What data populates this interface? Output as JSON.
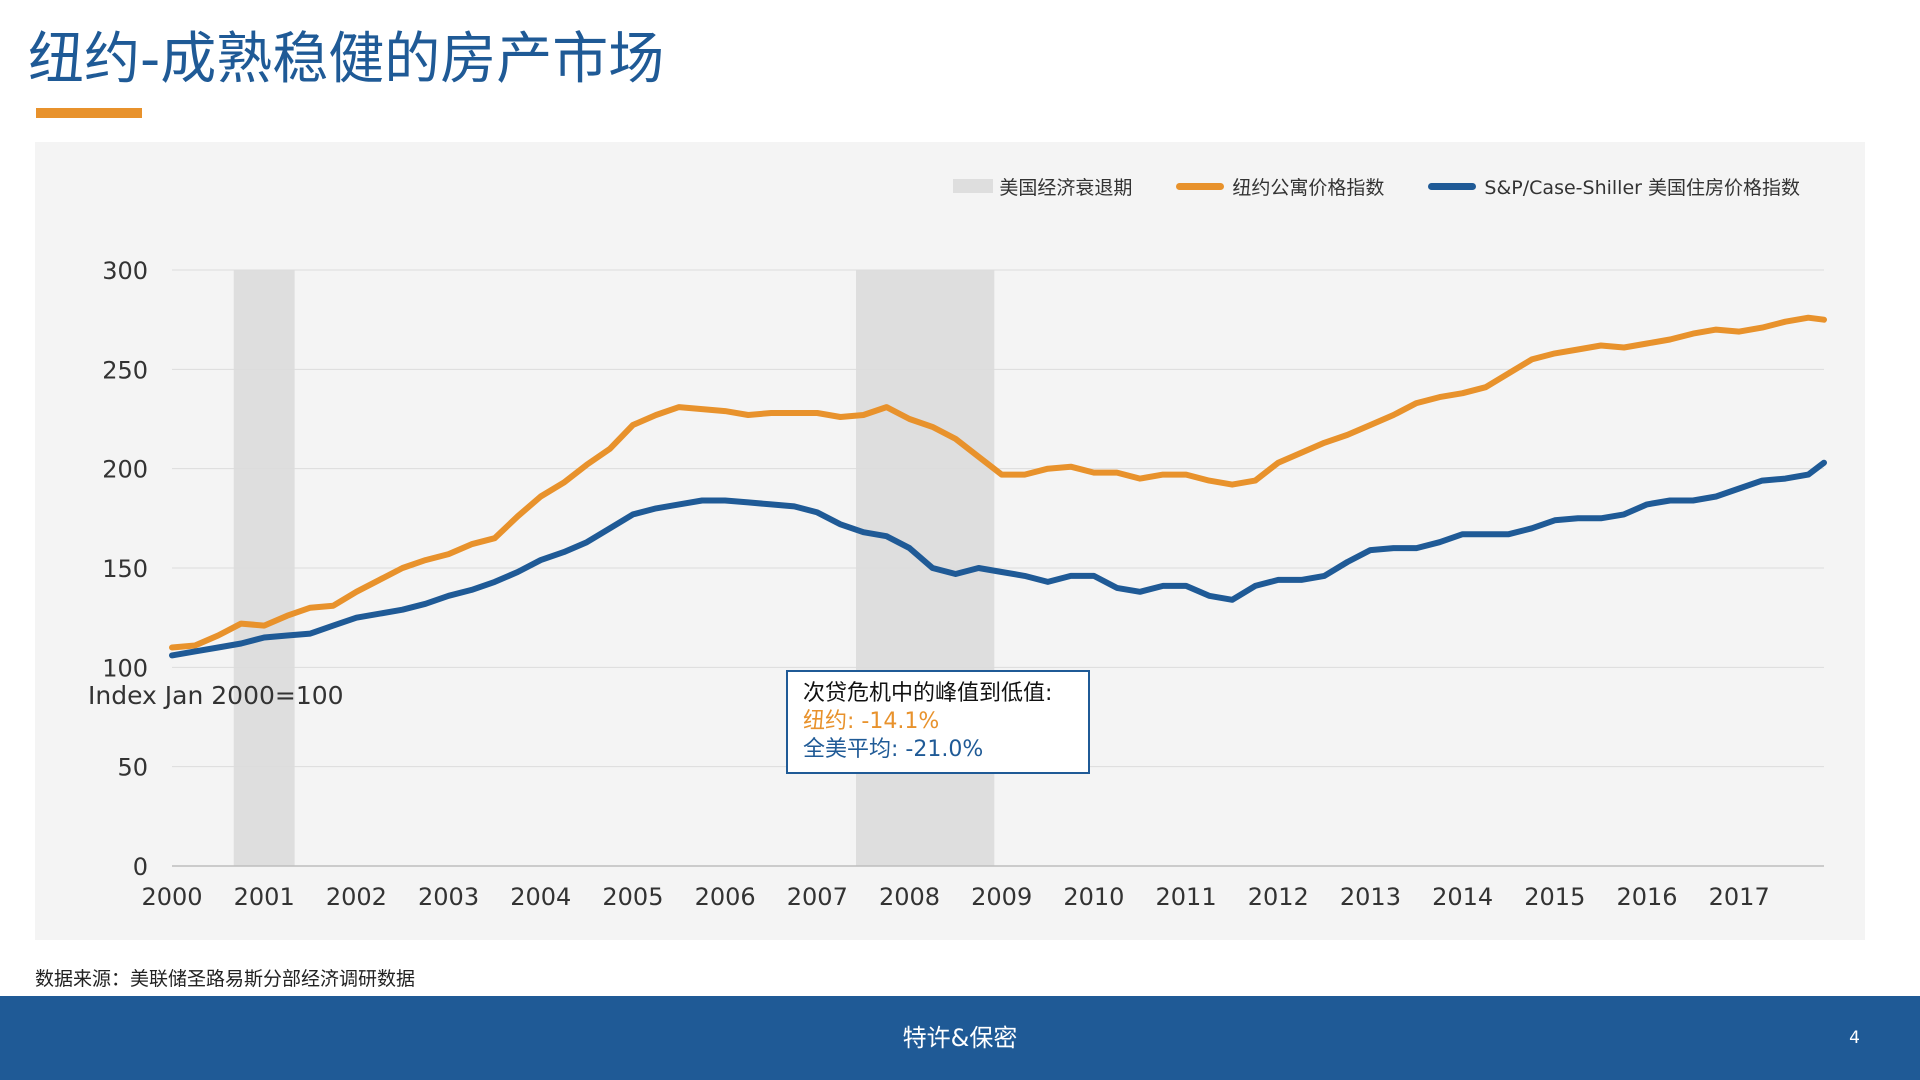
{
  "slide": {
    "title": "纽约-成熟稳健的房产市场",
    "source": "数据来源：美联储圣路易斯分部经济调研数据",
    "footer": "特许&保密",
    "page_number": "4"
  },
  "colors": {
    "title": "#1f5a96",
    "ny_line": "#e8922c",
    "us_line": "#1f5a96",
    "recession_band": "#dedede",
    "panel_bg": "#f4f4f4",
    "footer_bg": "#1f5a96"
  },
  "annotation": {
    "title": "次贷危机中的峰值到低值:",
    "ny": "纽约: -14.1%",
    "us": "全美平均: -21.0%"
  },
  "chart_data": {
    "type": "line",
    "title": "",
    "xlabel": "",
    "ylabel": "",
    "y_note": "Index Jan 2000=100",
    "xlim": [
      2000,
      2018
    ],
    "ylim": [
      0,
      300
    ],
    "yticks": [
      0,
      50,
      100,
      150,
      200,
      250,
      300
    ],
    "xticks": [
      "2000",
      "2001",
      "2002",
      "2003",
      "2004",
      "2005",
      "2006",
      "2007",
      "2008",
      "2009",
      "2010",
      "2011",
      "2012",
      "2013",
      "2014",
      "2015",
      "2016",
      "2017"
    ],
    "grid": "horizontal",
    "legend_position": "top-right",
    "recessions": {
      "name": "美国经济衰退期",
      "periods": [
        [
          2000.67,
          2001.33
        ],
        [
          2007.42,
          2008.92
        ]
      ]
    },
    "series": [
      {
        "name": "纽约公寓价格指数",
        "color": "#e8922c",
        "x": [
          2000.0,
          2000.25,
          2000.5,
          2000.75,
          2001.0,
          2001.25,
          2001.5,
          2001.75,
          2002.0,
          2002.25,
          2002.5,
          2002.75,
          2003.0,
          2003.25,
          2003.5,
          2003.75,
          2004.0,
          2004.25,
          2004.5,
          2004.75,
          2005.0,
          2005.25,
          2005.5,
          2005.75,
          2006.0,
          2006.25,
          2006.5,
          2006.75,
          2007.0,
          2007.25,
          2007.5,
          2007.75,
          2008.0,
          2008.25,
          2008.5,
          2008.75,
          2009.0,
          2009.25,
          2009.5,
          2009.75,
          2010.0,
          2010.25,
          2010.5,
          2010.75,
          2011.0,
          2011.25,
          2011.5,
          2011.75,
          2012.0,
          2012.25,
          2012.5,
          2012.75,
          2013.0,
          2013.25,
          2013.5,
          2013.75,
          2014.0,
          2014.25,
          2014.5,
          2014.75,
          2015.0,
          2015.25,
          2015.5,
          2015.75,
          2016.0,
          2016.25,
          2016.5,
          2016.75,
          2017.0,
          2017.25,
          2017.5,
          2017.75,
          2017.92
        ],
        "values": [
          110,
          111,
          116,
          122,
          121,
          126,
          130,
          131,
          138,
          144,
          150,
          154,
          157,
          162,
          165,
          176,
          186,
          193,
          202,
          210,
          222,
          227,
          231,
          230,
          229,
          227,
          228,
          228,
          228,
          226,
          227,
          231,
          225,
          221,
          215,
          206,
          197,
          197,
          200,
          201,
          198,
          198,
          195,
          197,
          197,
          194,
          192,
          194,
          203,
          208,
          213,
          217,
          222,
          227,
          233,
          236,
          238,
          241,
          248,
          255,
          258,
          260,
          262,
          261,
          263,
          265,
          268,
          270,
          269,
          271,
          274,
          276,
          275
        ]
      },
      {
        "name": "S&P/Case-Shiller 美国住房价格指数",
        "color": "#1f5a96",
        "x": [
          2000.0,
          2000.25,
          2000.5,
          2000.75,
          2001.0,
          2001.25,
          2001.5,
          2001.75,
          2002.0,
          2002.25,
          2002.5,
          2002.75,
          2003.0,
          2003.25,
          2003.5,
          2003.75,
          2004.0,
          2004.25,
          2004.5,
          2004.75,
          2005.0,
          2005.25,
          2005.5,
          2005.75,
          2006.0,
          2006.25,
          2006.5,
          2006.75,
          2007.0,
          2007.25,
          2007.5,
          2007.75,
          2008.0,
          2008.25,
          2008.5,
          2008.75,
          2009.0,
          2009.25,
          2009.5,
          2009.75,
          2010.0,
          2010.25,
          2010.5,
          2010.75,
          2011.0,
          2011.25,
          2011.5,
          2011.75,
          2012.0,
          2012.25,
          2012.5,
          2012.75,
          2013.0,
          2013.25,
          2013.5,
          2013.75,
          2014.0,
          2014.25,
          2014.5,
          2014.75,
          2015.0,
          2015.25,
          2015.5,
          2015.75,
          2016.0,
          2016.25,
          2016.5,
          2016.75,
          2017.0,
          2017.25,
          2017.5,
          2017.75,
          2017.92
        ],
        "values": [
          106,
          108,
          110,
          112,
          115,
          116,
          117,
          121,
          125,
          127,
          129,
          132,
          136,
          139,
          143,
          148,
          154,
          158,
          163,
          170,
          177,
          180,
          182,
          184,
          184,
          183,
          182,
          181,
          178,
          172,
          168,
          166,
          160,
          150,
          147,
          150,
          148,
          146,
          143,
          146,
          146,
          140,
          138,
          141,
          141,
          136,
          134,
          141,
          144,
          144,
          146,
          153,
          159,
          160,
          160,
          163,
          167,
          167,
          167,
          170,
          174,
          175,
          175,
          177,
          182,
          184,
          184,
          186,
          190,
          194,
          195,
          197,
          203
        ]
      }
    ]
  }
}
